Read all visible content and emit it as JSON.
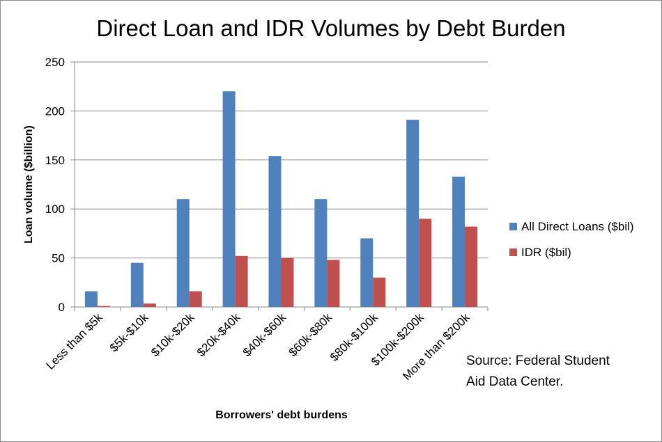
{
  "chart_data": {
    "type": "bar",
    "title": "Direct Loan and IDR Volumes by Debt Burden",
    "xlabel": "Borrowers' debt burdens",
    "ylabel": "Loan volume ($billion)",
    "ylim": [
      0,
      250
    ],
    "yticks": [
      "0",
      "50",
      "100",
      "150",
      "200",
      "250"
    ],
    "grid": true,
    "legend_position": "right",
    "categories": [
      "Less than $5k",
      "$5k-$10k",
      "$10k-$20k",
      "$20k-$40k",
      "$40k-$60k",
      "$60k-$80k",
      "$80k-$100k",
      "$100k-$200k",
      "More than $200k"
    ],
    "series": [
      {
        "name": "All Direct Loans ($bil)",
        "color": "#4F81BD",
        "values": [
          16,
          45,
          110,
          220,
          154,
          110,
          70,
          191,
          133
        ]
      },
      {
        "name": "IDR ($bil)",
        "color": "#C0504D",
        "values": [
          1,
          3.5,
          16,
          52,
          50,
          48,
          30,
          90,
          82
        ]
      }
    ],
    "annotation": [
      "Source: Federal Student",
      "Aid Data Center."
    ]
  }
}
